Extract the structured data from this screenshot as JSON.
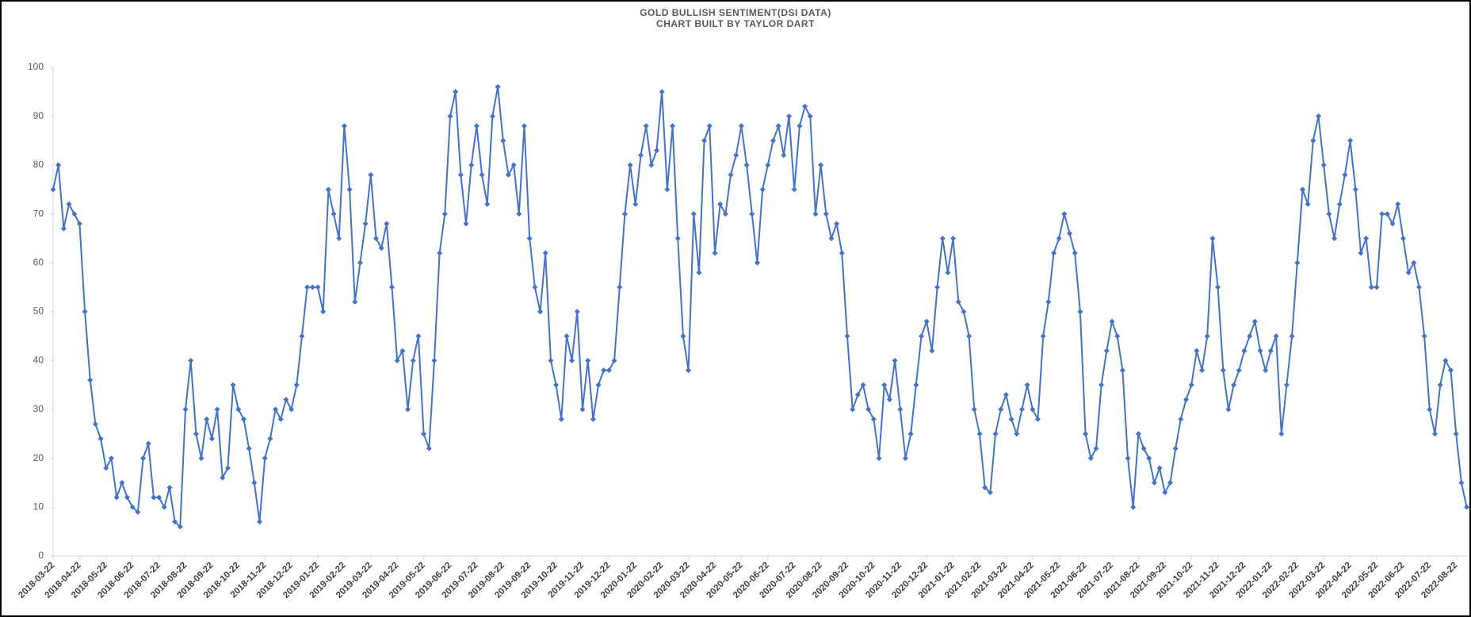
{
  "chart_data": {
    "type": "line",
    "title": "GOLD BULLISH SENTIMENT(DSI DATA)",
    "subtitle": "CHART BUILT BY TAYLOR DART",
    "color": "#4472c4",
    "ylim": [
      0,
      100
    ],
    "yticks": [
      0,
      10,
      20,
      30,
      40,
      50,
      60,
      70,
      80,
      90,
      100
    ],
    "grid": false,
    "categories": [
      "2018-03-22",
      null,
      null,
      null,
      null,
      "2018-04-22",
      null,
      null,
      null,
      null,
      "2018-05-22",
      null,
      null,
      null,
      null,
      "2018-06-22",
      null,
      null,
      null,
      null,
      "2018-07-22",
      null,
      null,
      null,
      null,
      "2018-08-22",
      null,
      null,
      null,
      null,
      "2018-09-22",
      null,
      null,
      null,
      null,
      "2018-10-22",
      null,
      null,
      null,
      null,
      "2018-11-22",
      null,
      null,
      null,
      null,
      "2018-12-22",
      null,
      null,
      null,
      null,
      "2019-01-22",
      null,
      null,
      null,
      null,
      "2019-02-22",
      null,
      null,
      null,
      null,
      "2019-03-22",
      null,
      null,
      null,
      null,
      "2019-04-22",
      null,
      null,
      null,
      null,
      "2019-05-22",
      null,
      null,
      null,
      null,
      "2019-06-22",
      null,
      null,
      null,
      null,
      "2019-07-22",
      null,
      null,
      null,
      null,
      "2019-08-22",
      null,
      null,
      null,
      null,
      "2019-09-22",
      null,
      null,
      null,
      null,
      "2019-10-22",
      null,
      null,
      null,
      null,
      "2019-11-22",
      null,
      null,
      null,
      null,
      "2019-12-22",
      null,
      null,
      null,
      null,
      "2020-01-22",
      null,
      null,
      null,
      null,
      "2020-02-22",
      null,
      null,
      null,
      null,
      "2020-03-22",
      null,
      null,
      null,
      null,
      "2020-04-22",
      null,
      null,
      null,
      null,
      "2020-05-22",
      null,
      null,
      null,
      null,
      "2020-06-22",
      null,
      null,
      null,
      null,
      "2020-07-22",
      null,
      null,
      null,
      null,
      "2020-08-22",
      null,
      null,
      null,
      null,
      "2020-09-22",
      null,
      null,
      null,
      null,
      "2020-10-22",
      null,
      null,
      null,
      null,
      "2020-11-22",
      null,
      null,
      null,
      null,
      "2020-12-22",
      null,
      null,
      null,
      null,
      "2021-01-22",
      null,
      null,
      null,
      null,
      "2021-02-22",
      null,
      null,
      null,
      null,
      "2021-03-22",
      null,
      null,
      null,
      null,
      "2021-04-22",
      null,
      null,
      null,
      null,
      "2021-05-22",
      null,
      null,
      null,
      null,
      "2021-06-22",
      null,
      null,
      null,
      null,
      "2021-07-22",
      null,
      null,
      null,
      null,
      "2021-08-22",
      null,
      null,
      null,
      null,
      "2021-09-22",
      null,
      null,
      null,
      null,
      "2021-10-22",
      null,
      null,
      null,
      null,
      "2021-11-22",
      null,
      null,
      null,
      null,
      "2021-12-22",
      null,
      null,
      null,
      null,
      "2022-01-22",
      null,
      null,
      null,
      null,
      "2022-02-22",
      null,
      null,
      null,
      null,
      "2022-03-22",
      null,
      null,
      null,
      null,
      "2022-04-22",
      null,
      null,
      null,
      null,
      "2022-05-22",
      null,
      null,
      null,
      null,
      "2022-06-22",
      null,
      null,
      null,
      null,
      "2022-07-22",
      null,
      null,
      null,
      null,
      "2022-08-22",
      null,
      null
    ],
    "values": [
      75,
      80,
      67,
      72,
      70,
      68,
      50,
      36,
      27,
      24,
      18,
      20,
      12,
      15,
      12,
      10,
      9,
      20,
      23,
      12,
      12,
      10,
      14,
      7,
      6,
      30,
      40,
      25,
      20,
      28,
      24,
      30,
      16,
      18,
      35,
      30,
      28,
      22,
      15,
      7,
      20,
      24,
      30,
      28,
      32,
      30,
      35,
      45,
      55,
      55,
      55,
      50,
      75,
      70,
      65,
      88,
      75,
      52,
      60,
      68,
      78,
      65,
      63,
      68,
      55,
      40,
      42,
      30,
      40,
      45,
      25,
      22,
      40,
      62,
      70,
      90,
      95,
      78,
      68,
      80,
      88,
      78,
      72,
      90,
      96,
      85,
      78,
      80,
      70,
      88,
      65,
      55,
      50,
      62,
      40,
      35,
      28,
      45,
      40,
      50,
      30,
      40,
      28,
      35,
      38,
      38,
      40,
      55,
      70,
      80,
      72,
      82,
      88,
      80,
      83,
      95,
      75,
      88,
      65,
      45,
      38,
      70,
      58,
      85,
      88,
      62,
      72,
      70,
      78,
      82,
      88,
      80,
      70,
      60,
      75,
      80,
      85,
      88,
      82,
      90,
      75,
      88,
      92,
      90,
      70,
      80,
      70,
      65,
      68,
      62,
      45,
      30,
      33,
      35,
      30,
      28,
      20,
      35,
      32,
      40,
      30,
      20,
      25,
      35,
      45,
      48,
      42,
      55,
      65,
      58,
      65,
      52,
      50,
      45,
      30,
      25,
      14,
      13,
      25,
      30,
      33,
      28,
      25,
      30,
      35,
      30,
      28,
      45,
      52,
      62,
      65,
      70,
      66,
      62,
      50,
      25,
      20,
      22,
      35,
      42,
      48,
      45,
      38,
      20,
      10,
      25,
      22,
      20,
      15,
      18,
      13,
      15,
      22,
      28,
      32,
      35,
      42,
      38,
      45,
      65,
      55,
      38,
      30,
      35,
      38,
      42,
      45,
      48,
      42,
      38,
      42,
      45,
      25,
      35,
      45,
      60,
      75,
      72,
      85,
      90,
      80,
      70,
      65,
      72,
      78,
      85,
      75,
      62,
      65,
      55,
      55,
      70,
      70,
      68,
      72,
      65,
      58,
      60,
      55,
      45,
      30,
      25,
      35,
      40,
      38,
      25,
      15,
      10
    ]
  }
}
